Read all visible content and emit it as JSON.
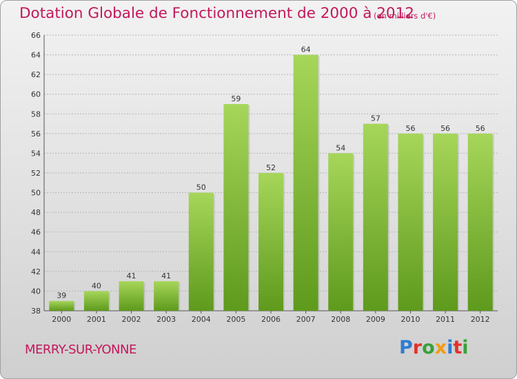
{
  "chart_data": {
    "type": "bar",
    "title": "Dotation Globale de Fonctionnement de 2000 à 2012",
    "subtitle": "(en milliers d'€)",
    "categories": [
      "2000",
      "2001",
      "2002",
      "2003",
      "2004",
      "2005",
      "2006",
      "2007",
      "2008",
      "2009",
      "2010",
      "2011",
      "2012"
    ],
    "values": [
      39,
      40,
      41,
      41,
      50,
      59,
      52,
      64,
      54,
      57,
      56,
      56,
      56
    ],
    "ylim": [
      38,
      66
    ],
    "yticks": [
      38,
      40,
      42,
      44,
      46,
      48,
      50,
      52,
      54,
      56,
      58,
      60,
      62,
      64,
      66
    ],
    "xlabel": "",
    "ylabel": "",
    "grid": true,
    "bar_color": "#7cb82f",
    "bar_color_light": "#a6d65a",
    "bar_color_dark": "#5e9a1c"
  },
  "footer": {
    "commune": "MERRY-SUR-YONNE",
    "logo_letters": [
      "P",
      "r",
      "o",
      "x",
      "i",
      "t",
      "i"
    ],
    "logo_colors": [
      "#2e7dd1",
      "#e0332b",
      "#3aa03a",
      "#f39c12",
      "#2e7dd1",
      "#e0332b",
      "#3aa03a"
    ]
  },
  "colors": {
    "title": "#c2185b",
    "grid": "#b5b5b5",
    "axis": "#555555"
  }
}
